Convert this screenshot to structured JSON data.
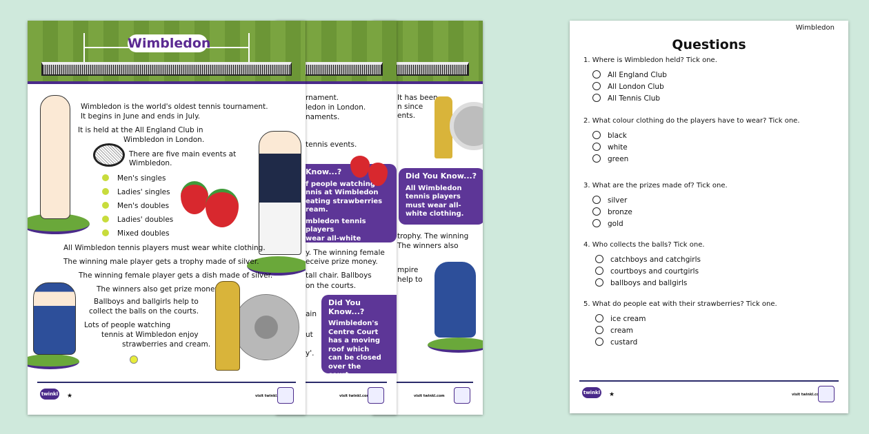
{
  "colors": {
    "background": "#cfe9dc",
    "purple": "#5d3697",
    "grass": "#7aa440"
  },
  "main_page": {
    "title": "Wimbledon",
    "paragraphs": [
      "Wimbledon is the world's oldest tennis tournament.",
      "It begins in June and ends in July.",
      "It is held at the All England Club in",
      "Wimbledon in London.",
      "There are five main events at",
      "Wimbledon."
    ],
    "events": [
      "Men's singles",
      "Ladies' singles",
      "Men's doubles",
      "Ladies' doubles",
      "Mixed doubles"
    ],
    "more": [
      "All Wimbledon tennis players must wear white clothing.",
      "The winning male player gets a trophy made of silver.",
      "The winning female player gets a dish made of silver.",
      "The winners also get prize money.",
      "Ballboys and ballgirls help to",
      "collect the balls on the courts.",
      "Lots of people watching",
      "tennis at Wimbledon enjoy",
      "strawberries and cream."
    ],
    "footer": {
      "logo": "twinkl",
      "visit": "visit twinkl.com"
    }
  },
  "page2": {
    "fragments": [
      "rnament.",
      "ledon in London.",
      "naments.",
      "tennis events.",
      "y. The winning female",
      "eceive prize money.",
      "tall chair. Ballboys",
      "on the courts.",
      "ain",
      "ut",
      "y'."
    ],
    "dyk1": {
      "heading": "Know...?",
      "lines": [
        "f people watching",
        "nnis at Wimbledon",
        "eating strawberries",
        "ream.",
        "mbledon tennis players",
        "wear all-white clothing."
      ]
    },
    "dyk2": {
      "heading": "Did You Know...?",
      "body": "Wimbledon's Centre Court has a moving roof which can be closed over the court."
    }
  },
  "page3": {
    "fragments": [
      "It has been",
      "n since",
      "ents.",
      "trophy. The winning",
      "The winners also",
      "mpire",
      "help to"
    ],
    "dyk": {
      "heading": "Did You Know...?",
      "body": "All Wimbledon tennis players must wear all-white clothing."
    }
  },
  "questions_page": {
    "header": "Wimbledon",
    "title": "Questions",
    "questions": [
      {
        "text": "1.  Where is Wimbledon held? Tick one.",
        "options": [
          "All England Club",
          "All London Club",
          "All Tennis Club"
        ]
      },
      {
        "text": "2.  What colour clothing do the players have to wear? Tick one.",
        "options": [
          "black",
          "white",
          "green"
        ]
      },
      {
        "text": "3.  What are the prizes made of? Tick one.",
        "options": [
          "silver",
          "bronze",
          "gold"
        ]
      },
      {
        "text": "4.  Who collects the balls? Tick one.",
        "options": [
          "catchboys and catchgirls",
          "courtboys and courtgirls",
          "ballboys and ballgirls"
        ]
      },
      {
        "text": "5.  What do people eat with their strawberries? Tick one.",
        "options": [
          "ice cream",
          "cream",
          "custard"
        ]
      }
    ],
    "footer": {
      "logo": "twinkl",
      "visit": "visit twinkl.com"
    }
  }
}
